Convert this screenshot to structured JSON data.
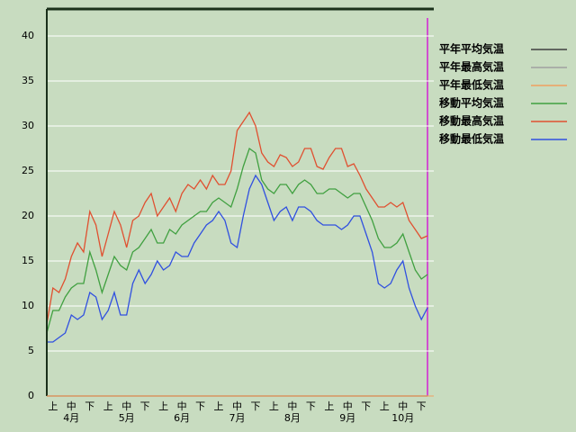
{
  "chart_data": {
    "type": "line",
    "categories": [
      null,
      "上",
      null,
      null,
      "中",
      null,
      null,
      "下",
      null,
      null,
      "上",
      null,
      null,
      "中",
      null,
      null,
      "下",
      null,
      null,
      "上",
      null,
      null,
      "中",
      null,
      null,
      "下",
      null,
      null,
      "上",
      null,
      null,
      "中",
      null,
      null,
      "下",
      null,
      null,
      "上",
      null,
      null,
      "中",
      null,
      null,
      "下",
      null,
      null,
      "上",
      null,
      null,
      "中",
      null,
      null,
      "下",
      null,
      null,
      "上",
      null,
      null,
      "中",
      null,
      null,
      "下",
      null
    ],
    "months": [
      "4月",
      "5月",
      "6月",
      "7月",
      "8月",
      "9月",
      "10月"
    ],
    "ylim": [
      0,
      43
    ],
    "yticks": [
      0,
      5,
      10,
      15,
      20,
      25,
      30,
      35,
      40
    ],
    "grid": true,
    "series": [
      {
        "name": "平年平均気温",
        "color": "#404040",
        "values": [
          0,
          0,
          0,
          0,
          0,
          0,
          0,
          0,
          0,
          0,
          0,
          0,
          0,
          0,
          0,
          0,
          0,
          0,
          0,
          0,
          0,
          0,
          0,
          0,
          0,
          0,
          0,
          0,
          0,
          0,
          0,
          0,
          0,
          0,
          0,
          0,
          0,
          0,
          0,
          0,
          0,
          0,
          0,
          0,
          0,
          0,
          0,
          0,
          0,
          0,
          0,
          0,
          0,
          0,
          0,
          0,
          0,
          0,
          0,
          0,
          0,
          0,
          0
        ]
      },
      {
        "name": "平年最高気温",
        "color": "#a0a0a0",
        "values": [
          0,
          0,
          0,
          0,
          0,
          0,
          0,
          0,
          0,
          0,
          0,
          0,
          0,
          0,
          0,
          0,
          0,
          0,
          0,
          0,
          0,
          0,
          0,
          0,
          0,
          0,
          0,
          0,
          0,
          0,
          0,
          0,
          0,
          0,
          0,
          0,
          0,
          0,
          0,
          0,
          0,
          0,
          0,
          0,
          0,
          0,
          0,
          0,
          0,
          0,
          0,
          0,
          0,
          0,
          0,
          0,
          0,
          0,
          0,
          0,
          0,
          0,
          0
        ]
      },
      {
        "name": "平年最低気温",
        "color": "#f0a060",
        "values": [
          0,
          0,
          0,
          0,
          0,
          0,
          0,
          0,
          0,
          0,
          0,
          0,
          0,
          0,
          0,
          0,
          0,
          0,
          0,
          0,
          0,
          0,
          0,
          0,
          0,
          0,
          0,
          0,
          0,
          0,
          0,
          0,
          0,
          0,
          0,
          0,
          0,
          0,
          0,
          0,
          0,
          0,
          0,
          0,
          0,
          0,
          0,
          0,
          0,
          0,
          0,
          0,
          0,
          0,
          0,
          0,
          0,
          0,
          0,
          0,
          0,
          0,
          0
        ]
      },
      {
        "name": "移動平均気温",
        "color": "#40a040",
        "values": [
          7,
          9.5,
          9.5,
          11,
          12,
          12.5,
          12.5,
          16,
          14,
          11.5,
          13.5,
          15.5,
          14.5,
          14,
          16,
          16.5,
          17.5,
          18.5,
          17,
          17,
          18.5,
          18,
          19,
          19.5,
          20,
          20.5,
          20.5,
          21.5,
          22,
          21.5,
          21,
          23,
          25.5,
          27.5,
          27,
          24,
          23,
          22.5,
          23.5,
          23.5,
          22.5,
          23.5,
          24,
          23.5,
          22.5,
          22.5,
          23,
          23,
          22.5,
          22,
          22.5,
          22.5,
          21,
          19.5,
          17.5,
          16.5,
          16.5,
          17,
          18,
          16,
          14,
          13,
          13.5
        ]
      },
      {
        "name": "移動最高気温",
        "color": "#e05030",
        "values": [
          8,
          12,
          11.5,
          13,
          15.5,
          17,
          16,
          20.5,
          19,
          15.5,
          18,
          20.5,
          19,
          16.5,
          19.5,
          20,
          21.5,
          22.5,
          20,
          21,
          22,
          20.5,
          22.5,
          23.5,
          23,
          24,
          23,
          24.5,
          23.5,
          23.5,
          25,
          29.5,
          30.5,
          31.5,
          30,
          27,
          26,
          25.5,
          26.8,
          26.5,
          25.5,
          26,
          27.5,
          27.5,
          25.5,
          25.2,
          26.5,
          27.5,
          27.5,
          25.5,
          25.8,
          24.5,
          23,
          22,
          21,
          21,
          21.5,
          21,
          21.5,
          19.5,
          18.5,
          17.5,
          17.8
        ]
      },
      {
        "name": "移動最低気温",
        "color": "#3050e0",
        "values": [
          6,
          6,
          6.5,
          7,
          9,
          8.5,
          9,
          11.5,
          11,
          8.5,
          9.5,
          11.5,
          9,
          9,
          12.5,
          14,
          12.5,
          13.5,
          15,
          14,
          14.5,
          16,
          15.5,
          15.5,
          17,
          18,
          19,
          19.5,
          20.5,
          19.5,
          17,
          16.5,
          20,
          23,
          24.5,
          23.5,
          21.5,
          19.5,
          20.5,
          21,
          19.5,
          21,
          21,
          20.5,
          19.5,
          19,
          19,
          19,
          18.5,
          19,
          20,
          20,
          18,
          16,
          12.5,
          12,
          12.5,
          14,
          15,
          12,
          10,
          8.5,
          9.8
        ]
      }
    ]
  }
}
